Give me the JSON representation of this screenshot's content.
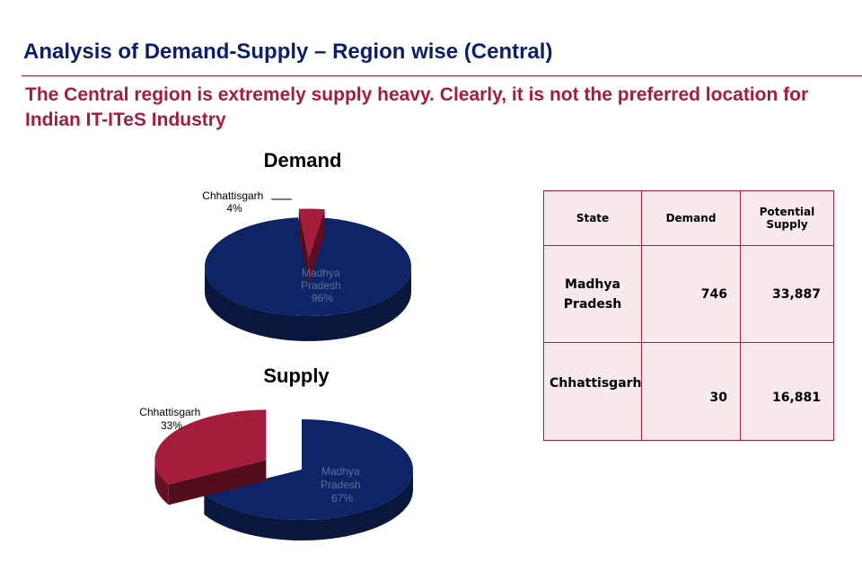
{
  "slide": {
    "title": "Analysis of Demand-Supply – Region wise (Central)",
    "subtitle": "The Central region is extremely supply heavy. Clearly, it is not the preferred location for Indian IT-ITeS Industry"
  },
  "colors": {
    "primary": "#0f2466",
    "accent": "#a51c3c"
  },
  "chart_data": [
    {
      "type": "pie",
      "style": "3d-exploded",
      "title": "Demand",
      "labels": [
        "Madhya Pradesh",
        "Chhattisgarh"
      ],
      "values": [
        96,
        4
      ],
      "unit": "%",
      "colors": [
        "#0f2466",
        "#a51c3c"
      ],
      "slice_labels": [
        [
          "Madhya",
          "Pradesh",
          "96%"
        ],
        [
          "Chhattisgarh",
          "4%"
        ]
      ]
    },
    {
      "type": "pie",
      "style": "3d-exploded",
      "title": "Supply",
      "labels": [
        "Madhya Pradesh",
        "Chhattisgarh"
      ],
      "values": [
        67,
        33
      ],
      "unit": "%",
      "colors": [
        "#0f2466",
        "#a51c3c"
      ],
      "slice_labels": [
        [
          "Madhya",
          "Pradesh",
          "67%"
        ],
        [
          "Chhattisgarh",
          "33%"
        ]
      ]
    },
    {
      "type": "table",
      "columns": [
        "State",
        "Demand",
        "Potential Supply"
      ],
      "column_lines": [
        [
          "State"
        ],
        [
          "Demand"
        ],
        [
          "Potential",
          "Supply"
        ]
      ],
      "rows": [
        {
          "state": "Madhya Pradesh",
          "state_lines": [
            "Madhya",
            "Pradesh"
          ],
          "demand": "746",
          "supply": "33,887"
        },
        {
          "state": "Chhattisgarh",
          "state_lines": [
            "Chhattisgarh"
          ],
          "demand": "30",
          "supply": "16,881"
        }
      ]
    }
  ]
}
